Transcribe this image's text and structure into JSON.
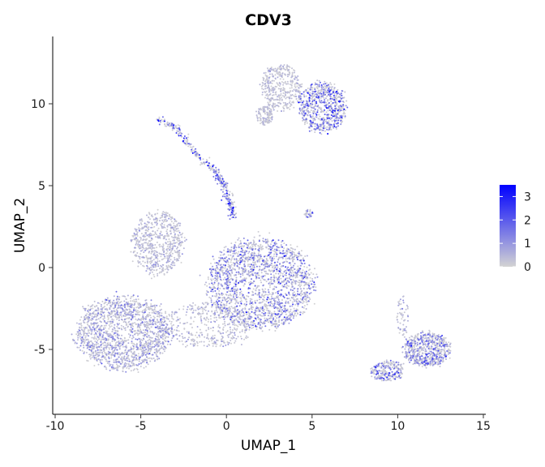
{
  "chart_data": {
    "type": "scatter",
    "title": "CDV3",
    "xlabel": "UMAP_1",
    "ylabel": "UMAP_2",
    "xlim": [
      -10,
      15
    ],
    "ylim": [
      -9,
      14
    ],
    "x_ticks": [
      -10,
      -5,
      0,
      5,
      10,
      15
    ],
    "x_tick_labels": [
      "-10",
      "-5",
      "0",
      "5",
      "10",
      "15"
    ],
    "y_ticks": [
      -5,
      0,
      5,
      10
    ],
    "y_tick_labels": [
      "-5",
      "0",
      "5",
      "10"
    ],
    "grid": false,
    "legend": {
      "placement": "right",
      "type": "colorbar",
      "range": [
        0,
        3.5
      ],
      "ticks": [
        0,
        1,
        2,
        3
      ],
      "tick_labels": [
        "0",
        "1",
        "2",
        "3"
      ],
      "color_low": "#d3d3d3",
      "color_high": "#0000ff"
    },
    "clusters": [
      {
        "name": "left-lower",
        "center": [
          -6.0,
          -4.0
        ],
        "spread": [
          1.6,
          1.3
        ],
        "n": 1700,
        "expression": 0.6
      },
      {
        "name": "left-upper",
        "center": [
          -4.0,
          1.5
        ],
        "spread": [
          0.9,
          1.1
        ],
        "n": 650,
        "expression": 0.4
      },
      {
        "name": "central",
        "center": [
          2.0,
          -1.0
        ],
        "spread": [
          1.8,
          1.6
        ],
        "n": 2000,
        "expression": 0.9
      },
      {
        "name": "bridge",
        "center": [
          -1.0,
          -3.5
        ],
        "spread": [
          1.6,
          0.8
        ],
        "n": 420,
        "expression": 0.4
      },
      {
        "name": "top-gray",
        "center": [
          3.2,
          11.0
        ],
        "spread": [
          0.7,
          0.8
        ],
        "n": 420,
        "expression": 0.3
      },
      {
        "name": "top-purple",
        "center": [
          5.6,
          9.8
        ],
        "spread": [
          0.8,
          0.9
        ],
        "n": 700,
        "expression": 1.2
      },
      {
        "name": "top-small",
        "center": [
          2.2,
          9.3
        ],
        "spread": [
          0.3,
          0.35
        ],
        "n": 120,
        "expression": 0.3
      },
      {
        "name": "right-lower",
        "center": [
          11.7,
          -5.0
        ],
        "spread": [
          0.8,
          0.6
        ],
        "n": 650,
        "expression": 0.9
      },
      {
        "name": "right-tail",
        "center": [
          9.4,
          -6.3
        ],
        "spread": [
          0.55,
          0.35
        ],
        "n": 260,
        "expression": 1.0
      },
      {
        "name": "right-stalk",
        "center": [
          10.3,
          -3.0
        ],
        "spread": [
          0.2,
          0.8
        ],
        "n": 60,
        "expression": 0.6
      },
      {
        "name": "small-dot",
        "center": [
          4.8,
          3.3
        ],
        "spread": [
          0.15,
          0.15
        ],
        "n": 30,
        "expression": 0.8
      }
    ],
    "trajectory": {
      "path": [
        [
          -4.0,
          9.0
        ],
        [
          -3.0,
          8.6
        ],
        [
          -2.0,
          7.2
        ],
        [
          -0.8,
          6.0
        ],
        [
          -0.2,
          5.2
        ],
        [
          0.2,
          4.0
        ],
        [
          0.4,
          3.0
        ]
      ],
      "n": 360,
      "expression": 1.3
    }
  }
}
